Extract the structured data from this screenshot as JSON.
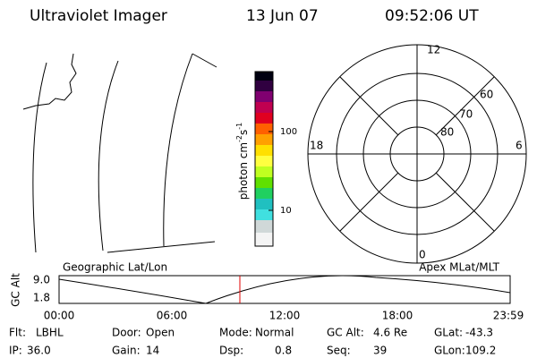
{
  "header": {
    "title": "Ultraviolet Imager",
    "date": "13 Jun 07",
    "time": "09:52:06 UT"
  },
  "colorbar": {
    "label": [
      "photon cm",
      "-2",
      "s",
      "-1"
    ],
    "ticks": [
      "100",
      "10"
    ]
  },
  "polar": {
    "mlt": [
      "12",
      "18",
      "6",
      "0"
    ],
    "mlat": [
      "60",
      "70",
      "80"
    ]
  },
  "timeline": {
    "left_label": "Geographic Lat/Lon",
    "right_label": "Apex MLat/MLT",
    "axis_title": "GC Alt",
    "yticks": [
      "9.0",
      "1.8"
    ],
    "xticks": [
      "00:00",
      "06:00",
      "12:00",
      "18:00",
      "23:59"
    ]
  },
  "status": [
    [
      {
        "label": "Flt:",
        "value": "LBHL"
      },
      {
        "label": "Door:",
        "value": "Open"
      },
      {
        "label": "Mode:",
        "value": "Normal"
      },
      {
        "label": "GC Alt:",
        "value": "4.6 Re"
      },
      {
        "label": "GLat:",
        "value": "-43.3"
      }
    ],
    [
      {
        "label": "IP:",
        "value": "36.0"
      },
      {
        "label": "Gain:",
        "value": "14"
      },
      {
        "label": "Dsp:",
        "value": "0.8"
      },
      {
        "label": "Seq:",
        "value": "39"
      },
      {
        "label": "GLon:",
        "value": "109.2"
      }
    ]
  ]
}
